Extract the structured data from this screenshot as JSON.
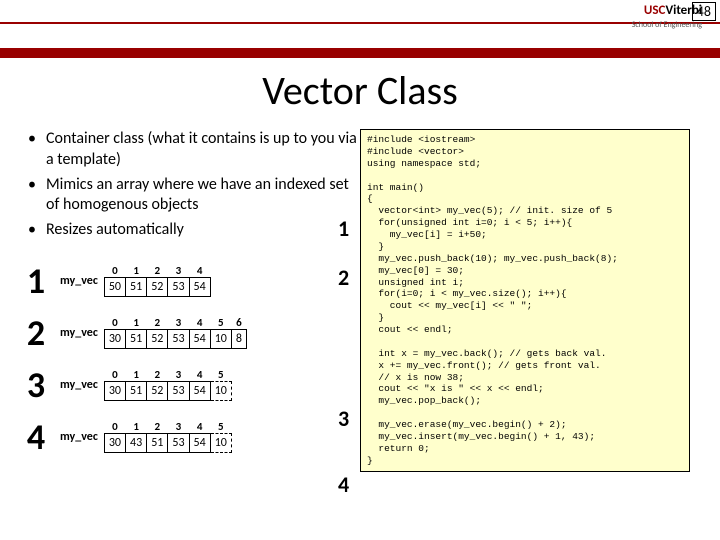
{
  "page_number": "48",
  "logo": {
    "usc": "USC",
    "viterbi": "Viterbi",
    "school": "School of Engineering"
  },
  "title": "Vector Class",
  "bullets": [
    "Container class (what it contains is up to you via a template)",
    "Mimics an array where we have an indexed set of homogenous objects",
    "Resizes automatically"
  ],
  "tables": [
    {
      "num": "1",
      "label": "my_vec",
      "headers": [
        "0",
        "1",
        "2",
        "3",
        "4"
      ],
      "cells": [
        "50",
        "51",
        "52",
        "53",
        "54"
      ],
      "dashed_count": 0
    },
    {
      "num": "2",
      "label": "my_vec",
      "headers": [
        "0",
        "1",
        "2",
        "3",
        "4",
        "5",
        "6"
      ],
      "cells": [
        "30",
        "51",
        "52",
        "53",
        "54",
        "10",
        "8"
      ],
      "dashed_count": 0
    },
    {
      "num": "3",
      "label": "my_vec",
      "headers": [
        "0",
        "1",
        "2",
        "3",
        "4",
        "5"
      ],
      "cells": [
        "30",
        "51",
        "52",
        "53",
        "54",
        "10"
      ],
      "dashed_count": 1
    },
    {
      "num": "4",
      "label": "my_vec",
      "headers": [
        "0",
        "1",
        "2",
        "3",
        "4",
        "5"
      ],
      "cells": [
        "30",
        "43",
        "51",
        "53",
        "54",
        "10"
      ],
      "dashed_count": 1
    }
  ],
  "callouts": [
    "1",
    "2",
    "3",
    "4"
  ],
  "code": "#include <iostream>\n#include <vector>\nusing namespace std;\n\nint main()\n{\n  vector<int> my_vec(5); // init. size of 5\n  for(unsigned int i=0; i < 5; i++){\n    my_vec[i] = i+50;\n  }\n  my_vec.push_back(10); my_vec.push_back(8);\n  my_vec[0] = 30;\n  unsigned int i;\n  for(i=0; i < my_vec.size(); i++){\n    cout << my_vec[i] << \" \";\n  }\n  cout << endl;\n\n  int x = my_vec.back(); // gets back val.\n  x += my_vec.front(); // gets front val.\n  // x is now 38;\n  cout << \"x is \" << x << endl;\n  my_vec.pop_back();\n\n  my_vec.erase(my_vec.begin() + 2);\n  my_vec.insert(my_vec.begin() + 1, 43);\n  return 0;\n}",
  "colors": {
    "cardinal": "#990000",
    "codebg": "#ffffcc"
  }
}
